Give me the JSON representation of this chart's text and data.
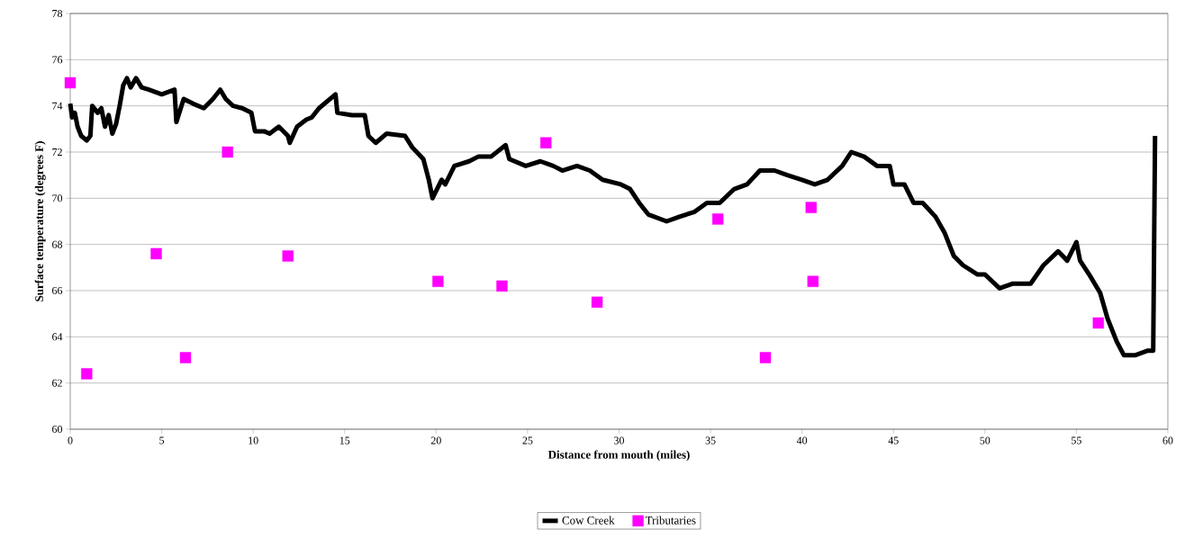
{
  "chart_data": {
    "type": "line",
    "xlabel": "Distance from mouth (miles)",
    "ylabel": "Surface temperature (degrees F)",
    "xlim": [
      0,
      60
    ],
    "ylim": [
      60,
      78
    ],
    "xticks": [
      0,
      5,
      10,
      15,
      20,
      25,
      30,
      35,
      40,
      45,
      50,
      55,
      60
    ],
    "yticks": [
      60,
      62,
      64,
      66,
      68,
      70,
      72,
      74,
      76,
      78
    ],
    "grid": "y",
    "legend": "bottom",
    "series": [
      {
        "name": "Cow Creek",
        "color": "#000000",
        "marker": "none",
        "line_style": "solid",
        "x": [
          0.0,
          0.1,
          0.25,
          0.4,
          0.6,
          0.9,
          1.1,
          1.2,
          1.5,
          1.7,
          1.9,
          2.1,
          2.3,
          2.5,
          2.7,
          2.9,
          3.1,
          3.3,
          3.6,
          3.9,
          4.3,
          5.0,
          5.7,
          5.8,
          6.2,
          6.7,
          7.3,
          7.8,
          8.2,
          8.5,
          8.9,
          9.4,
          9.9,
          10.1,
          10.6,
          10.9,
          11.4,
          11.9,
          12.0,
          12.4,
          12.9,
          13.2,
          13.6,
          14.5,
          14.6,
          15.4,
          16.1,
          16.3,
          16.7,
          17.3,
          18.3,
          18.7,
          19.3,
          19.6,
          19.8,
          20.3,
          20.5,
          21.0,
          21.8,
          22.3,
          23.0,
          23.8,
          24.0,
          24.9,
          25.7,
          26.4,
          26.9,
          27.7,
          28.4,
          29.1,
          30.1,
          30.6,
          31.1,
          31.6,
          32.6,
          33.3,
          34.1,
          34.8,
          35.5,
          36.3,
          37.0,
          37.7,
          38.5,
          39.2,
          40.0,
          40.7,
          41.4,
          42.2,
          42.7,
          43.4,
          44.1,
          44.8,
          45.0,
          45.6,
          46.1,
          46.6,
          47.3,
          47.8,
          48.3,
          48.8,
          49.6,
          50.0,
          50.8,
          51.5,
          52.5,
          53.2,
          54.0,
          54.5,
          55.0,
          55.2,
          55.7,
          56.3,
          56.7,
          57.2,
          57.6,
          58.2,
          58.9,
          59.2,
          59.3
        ],
        "values": [
          74.1,
          73.5,
          73.7,
          73.1,
          72.7,
          72.5,
          72.7,
          74.0,
          73.7,
          73.9,
          73.1,
          73.6,
          72.8,
          73.2,
          74.0,
          74.9,
          75.2,
          74.8,
          75.2,
          74.8,
          74.7,
          74.5,
          74.7,
          73.3,
          74.3,
          74.1,
          73.9,
          74.3,
          74.7,
          74.3,
          74.0,
          73.9,
          73.7,
          72.9,
          72.9,
          72.8,
          73.1,
          72.7,
          72.4,
          73.1,
          73.4,
          73.5,
          73.9,
          74.5,
          73.7,
          73.6,
          73.6,
          72.7,
          72.4,
          72.8,
          72.7,
          72.2,
          71.7,
          70.8,
          70.0,
          70.8,
          70.6,
          71.4,
          71.6,
          71.8,
          71.8,
          72.3,
          71.7,
          71.4,
          71.6,
          71.4,
          71.2,
          71.4,
          71.2,
          70.8,
          70.6,
          70.4,
          69.8,
          69.3,
          69.0,
          69.2,
          69.4,
          69.8,
          69.8,
          70.4,
          70.6,
          71.2,
          71.2,
          71.0,
          70.8,
          70.6,
          70.8,
          71.4,
          72.0,
          71.8,
          71.4,
          71.4,
          70.6,
          70.6,
          69.8,
          69.8,
          69.2,
          68.5,
          67.5,
          67.1,
          66.7,
          66.7,
          66.1,
          66.3,
          66.3,
          67.1,
          67.7,
          67.3,
          68.1,
          67.3,
          66.7,
          65.9,
          64.8,
          63.8,
          63.2,
          63.2,
          63.4,
          63.4,
          72.7
        ]
      },
      {
        "name": "Tributaries",
        "type": "scatter",
        "color": "#ff00ff",
        "marker": "square",
        "x": [
          0.0,
          0.9,
          4.7,
          6.3,
          8.6,
          11.9,
          20.1,
          23.6,
          26.0,
          28.8,
          35.4,
          38.0,
          40.5,
          40.6,
          56.2
        ],
        "values": [
          75.0,
          62.4,
          67.6,
          63.1,
          72.0,
          67.5,
          66.4,
          66.2,
          72.4,
          65.5,
          69.1,
          63.1,
          69.6,
          66.4,
          64.6
        ]
      }
    ]
  }
}
